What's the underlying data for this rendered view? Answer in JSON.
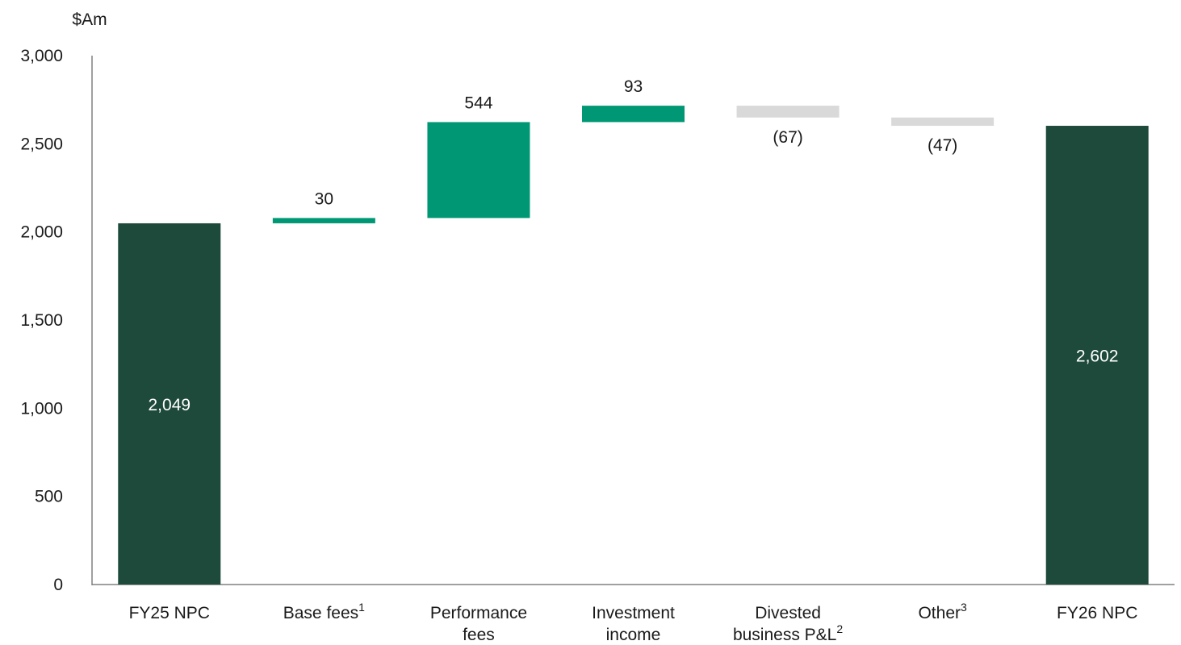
{
  "chart_data": {
    "type": "waterfall",
    "unit_label": "$Am",
    "ylim": [
      0,
      3000
    ],
    "y_ticks": [
      "0",
      "500",
      "1,000",
      "1,500",
      "2,000",
      "2,500",
      "3,000"
    ],
    "y_tick_values": [
      0,
      500,
      1000,
      1500,
      2000,
      2500,
      3000
    ],
    "grid": false,
    "colors": {
      "total": "#1e4a3b",
      "increase": "#009874",
      "decrease": "#d9d9d9",
      "axis": "#808080"
    },
    "bars": [
      {
        "category": [
          "FY25  NPC"
        ],
        "sup": "",
        "kind": "total",
        "value": 2049,
        "label": "2,049"
      },
      {
        "category": [
          "Base fees"
        ],
        "sup": "1",
        "kind": "increase",
        "value": 30,
        "label": "30"
      },
      {
        "category": [
          "Performance",
          "fees"
        ],
        "sup": "",
        "kind": "increase",
        "value": 544,
        "label": "544"
      },
      {
        "category": [
          "Investment",
          "income"
        ],
        "sup": "",
        "kind": "increase",
        "value": 93,
        "label": "93"
      },
      {
        "category": [
          "Divested",
          "business P&L"
        ],
        "sup": "2",
        "kind": "decrease",
        "value": -67,
        "label": "(67)"
      },
      {
        "category": [
          "Other"
        ],
        "sup": "3",
        "kind": "decrease",
        "value": -47,
        "label": "(47)"
      },
      {
        "category": [
          "FY26 NPC"
        ],
        "sup": "",
        "kind": "total",
        "value": 2602,
        "label": "2,602"
      }
    ]
  }
}
